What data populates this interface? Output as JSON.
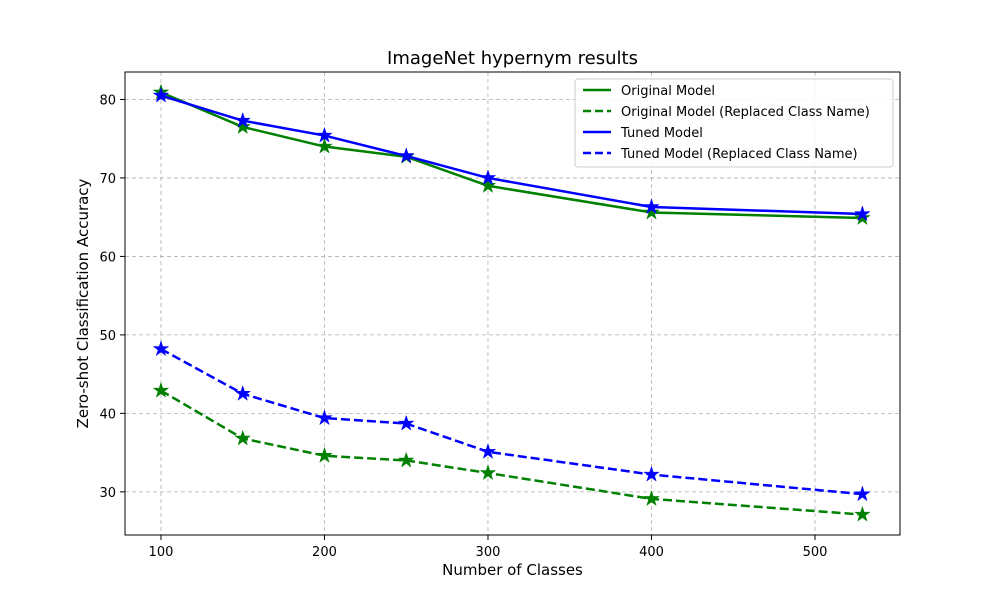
{
  "chart_data": {
    "type": "line",
    "title": "ImageNet hypernym results",
    "xlabel": "Number of Classes",
    "ylabel": "Zero-shot Classification Accuracy",
    "xlim": [
      78,
      552
    ],
    "ylim": [
      24.5,
      83.5
    ],
    "xticks": [
      100,
      200,
      300,
      400,
      500
    ],
    "yticks": [
      30,
      40,
      50,
      60,
      70,
      80
    ],
    "grid": true,
    "legend_position": "top-right",
    "x": [
      100,
      150,
      200,
      250,
      300,
      400,
      529
    ],
    "series": [
      {
        "name": "Original Model",
        "values": [
          80.9,
          76.5,
          74.0,
          72.7,
          69.0,
          65.6,
          64.9
        ],
        "color": "#008000",
        "dash": "solid",
        "marker": "star"
      },
      {
        "name": "Original Model (Replaced Class Name)",
        "values": [
          42.9,
          36.8,
          34.6,
          34.0,
          32.4,
          29.1,
          27.1
        ],
        "color": "#008000",
        "dash": "dashed",
        "marker": "star"
      },
      {
        "name": "Tuned Model",
        "values": [
          80.5,
          77.3,
          75.4,
          72.8,
          70.0,
          66.3,
          65.4
        ],
        "color": "#0000ff",
        "dash": "solid",
        "marker": "star"
      },
      {
        "name": "Tuned Model (Replaced Class Name)",
        "values": [
          48.2,
          42.5,
          39.4,
          38.7,
          35.1,
          32.2,
          29.7
        ],
        "color": "#0000ff",
        "dash": "dashed",
        "marker": "star"
      }
    ]
  }
}
